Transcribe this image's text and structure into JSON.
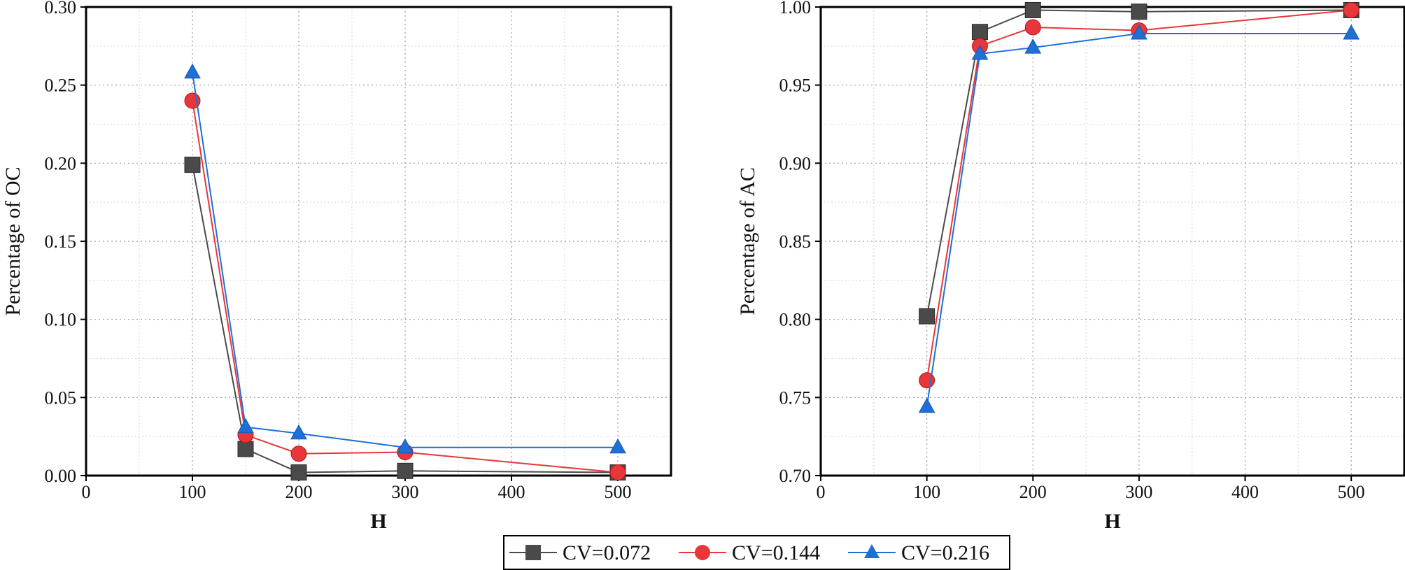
{
  "chart_data": [
    {
      "type": "line",
      "title": "",
      "xlabel": "H",
      "ylabel": "Percentage of OC",
      "xlim": [
        0,
        550
      ],
      "ylim": [
        0.0,
        0.3
      ],
      "xticks": [
        0,
        100,
        200,
        300,
        400,
        500
      ],
      "yticks": [
        0.0,
        0.05,
        0.1,
        0.15,
        0.2,
        0.25,
        0.3
      ],
      "xtick_labels": [
        "0",
        "100",
        "200",
        "300",
        "400",
        "500"
      ],
      "ytick_labels": [
        "0.00",
        "0.05",
        "0.10",
        "0.15",
        "0.20",
        "0.25",
        "0.30"
      ],
      "grid": true,
      "x": [
        100,
        150,
        200,
        300,
        500
      ],
      "series": [
        {
          "name": "CV=0.072",
          "values": [
            0.199,
            0.017,
            0.002,
            0.003,
            0.002
          ]
        },
        {
          "name": "CV=0.144",
          "values": [
            0.24,
            0.026,
            0.014,
            0.015,
            0.002
          ]
        },
        {
          "name": "CV=0.216",
          "values": [
            0.258,
            0.031,
            0.027,
            0.018,
            0.018
          ]
        }
      ]
    },
    {
      "type": "line",
      "title": "",
      "xlabel": "H",
      "ylabel": "Percentage of AC",
      "xlim": [
        0,
        550
      ],
      "ylim": [
        0.7,
        1.0
      ],
      "xticks": [
        0,
        100,
        200,
        300,
        400,
        500
      ],
      "yticks": [
        0.7,
        0.75,
        0.8,
        0.85,
        0.9,
        0.95,
        1.0
      ],
      "xtick_labels": [
        "0",
        "100",
        "200",
        "300",
        "400",
        "500"
      ],
      "ytick_labels": [
        "0.70",
        "0.75",
        "0.80",
        "0.85",
        "0.90",
        "0.95",
        "1.00"
      ],
      "grid": true,
      "x": [
        100,
        150,
        200,
        300,
        500
      ],
      "series": [
        {
          "name": "CV=0.072",
          "values": [
            0.802,
            0.984,
            0.998,
            0.997,
            0.998
          ]
        },
        {
          "name": "CV=0.144",
          "values": [
            0.761,
            0.975,
            0.987,
            0.985,
            0.998
          ]
        },
        {
          "name": "CV=0.216",
          "values": [
            0.744,
            0.97,
            0.974,
            0.983,
            0.983
          ]
        }
      ]
    }
  ],
  "legend": {
    "placement": "bottom-center",
    "entries": [
      "CV=0.072",
      "CV=0.144",
      "CV=0.216"
    ]
  },
  "colors": {
    "CV=0.072": "#4a4a4a",
    "CV=0.144": "#e8363a",
    "CV=0.216": "#1f6fd6"
  },
  "markers": {
    "CV=0.072": "square",
    "CV=0.144": "circle",
    "CV=0.216": "triangle"
  }
}
